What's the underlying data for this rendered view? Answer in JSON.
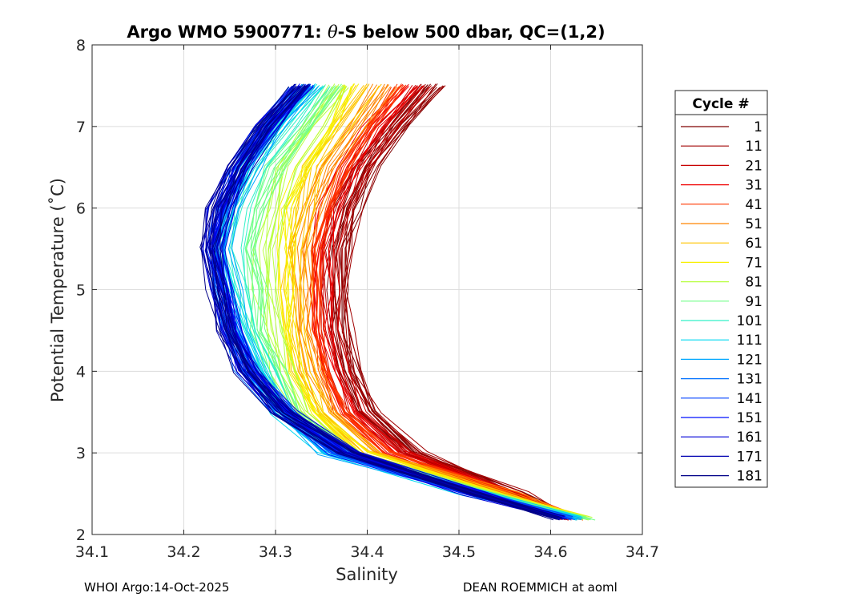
{
  "chart_data": {
    "type": "line",
    "title_prefix": "Argo WMO 5900771: ",
    "title_symbol": "θ",
    "title_suffix": "-S below 500 dbar,  QC=(1,2)",
    "xlabel": "Salinity",
    "ylabel": "Potential Temperature (˚C)",
    "xlim": [
      34.1,
      34.7
    ],
    "ylim": [
      2,
      8
    ],
    "xticks": [
      34.1,
      34.2,
      34.3,
      34.4,
      34.5,
      34.6,
      34.7
    ],
    "xtick_labels": [
      "34.1",
      "34.2",
      "34.3",
      "34.4",
      "34.5",
      "34.6",
      "34.7"
    ],
    "yticks": [
      2,
      3,
      4,
      5,
      6,
      7,
      8
    ],
    "ytick_labels": [
      "2",
      "3",
      "4",
      "5",
      "6",
      "7",
      "8"
    ],
    "grid": true,
    "legend_title": "Cycle #",
    "legend_position": "outside-right",
    "colormap": "jet",
    "cycles_total": 185,
    "legend": [
      {
        "label": "1",
        "color": "#7f0000"
      },
      {
        "label": "11",
        "color": "#a00000"
      },
      {
        "label": "21",
        "color": "#c80000"
      },
      {
        "label": "31",
        "color": "#f00000"
      },
      {
        "label": "41",
        "color": "#ff3800"
      },
      {
        "label": "51",
        "color": "#ff8400"
      },
      {
        "label": "61",
        "color": "#ffc400"
      },
      {
        "label": "71",
        "color": "#f8f000"
      },
      {
        "label": "81",
        "color": "#b8ff40"
      },
      {
        "label": "91",
        "color": "#70ff88"
      },
      {
        "label": "101",
        "color": "#30f0c8"
      },
      {
        "label": "111",
        "color": "#00d8f0"
      },
      {
        "label": "121",
        "color": "#00a8ff"
      },
      {
        "label": "131",
        "color": "#0070ff"
      },
      {
        "label": "141",
        "color": "#0040ff"
      },
      {
        "label": "151",
        "color": "#0010ff"
      },
      {
        "label": "161",
        "color": "#0000d8"
      },
      {
        "label": "171",
        "color": "#0000b0"
      },
      {
        "label": "181",
        "color": "#000088"
      }
    ],
    "theta_levels": [
      2.2,
      2.5,
      3.0,
      3.5,
      4.0,
      4.5,
      5.0,
      5.5,
      6.0,
      6.5,
      7.0,
      7.5
    ],
    "series_groups": [
      {
        "color": "#7f0000",
        "salinity": [
          34.62,
          34.56,
          34.45,
          34.4,
          34.38,
          34.37,
          34.37,
          34.37,
          34.38,
          34.4,
          34.43,
          34.47
        ]
      },
      {
        "color": "#a00000",
        "salinity": [
          34.62,
          34.56,
          34.45,
          34.4,
          34.38,
          34.37,
          34.37,
          34.37,
          34.38,
          34.4,
          34.43,
          34.47
        ]
      },
      {
        "color": "#c80000",
        "salinity": [
          34.62,
          34.56,
          34.44,
          34.39,
          34.37,
          34.36,
          34.36,
          34.36,
          34.37,
          34.39,
          34.42,
          34.46
        ]
      },
      {
        "color": "#f00000",
        "salinity": [
          34.62,
          34.55,
          34.43,
          34.38,
          34.36,
          34.35,
          34.35,
          34.35,
          34.36,
          34.38,
          34.41,
          34.45
        ]
      },
      {
        "color": "#ff3800",
        "salinity": [
          34.63,
          34.55,
          34.42,
          34.37,
          34.35,
          34.34,
          34.34,
          34.34,
          34.35,
          34.37,
          34.4,
          34.43
        ]
      },
      {
        "color": "#ff8400",
        "salinity": [
          34.63,
          34.55,
          34.41,
          34.36,
          34.34,
          34.33,
          34.33,
          34.33,
          34.34,
          34.36,
          34.39,
          34.42
        ]
      },
      {
        "color": "#ffc400",
        "salinity": [
          34.63,
          34.54,
          34.4,
          34.35,
          34.33,
          34.32,
          34.32,
          34.32,
          34.33,
          34.34,
          34.37,
          34.4
        ]
      },
      {
        "color": "#f8f000",
        "salinity": [
          34.64,
          34.54,
          34.39,
          34.34,
          34.32,
          34.31,
          34.31,
          34.31,
          34.31,
          34.33,
          34.36,
          34.38
        ]
      },
      {
        "color": "#b8ff40",
        "salinity": [
          34.64,
          34.53,
          34.38,
          34.33,
          34.31,
          34.3,
          34.29,
          34.29,
          34.3,
          34.31,
          34.34,
          34.37
        ]
      },
      {
        "color": "#70ff88",
        "salinity": [
          34.64,
          34.53,
          34.38,
          34.32,
          34.3,
          34.28,
          34.28,
          34.27,
          34.28,
          34.3,
          34.33,
          34.36
        ]
      },
      {
        "color": "#30f0c8",
        "salinity": [
          34.63,
          34.52,
          34.37,
          34.31,
          34.29,
          34.27,
          34.26,
          34.25,
          34.26,
          34.28,
          34.31,
          34.35
        ]
      },
      {
        "color": "#00d8f0",
        "salinity": [
          34.63,
          34.52,
          34.36,
          34.31,
          34.28,
          34.26,
          34.25,
          34.24,
          34.25,
          34.27,
          34.3,
          34.34
        ]
      },
      {
        "color": "#00a8ff",
        "salinity": [
          34.63,
          34.52,
          34.36,
          34.31,
          34.28,
          34.26,
          34.25,
          34.24,
          34.25,
          34.27,
          34.3,
          34.34
        ]
      },
      {
        "color": "#0070ff",
        "salinity": [
          34.62,
          34.52,
          34.37,
          34.31,
          34.27,
          34.25,
          34.24,
          34.24,
          34.25,
          34.26,
          34.29,
          34.33
        ]
      },
      {
        "color": "#0040ff",
        "salinity": [
          34.62,
          34.52,
          34.37,
          34.31,
          34.27,
          34.25,
          34.24,
          34.23,
          34.24,
          34.26,
          34.29,
          34.33
        ]
      },
      {
        "color": "#0010ff",
        "salinity": [
          34.61,
          34.52,
          34.37,
          34.31,
          34.27,
          34.25,
          34.24,
          34.23,
          34.24,
          34.26,
          34.29,
          34.33
        ]
      },
      {
        "color": "#0000d8",
        "salinity": [
          34.61,
          34.52,
          34.38,
          34.31,
          34.27,
          34.25,
          34.24,
          34.23,
          34.24,
          34.26,
          34.29,
          34.33
        ]
      },
      {
        "color": "#0000b0",
        "salinity": [
          34.61,
          34.52,
          34.38,
          34.31,
          34.27,
          34.25,
          34.24,
          34.23,
          34.24,
          34.26,
          34.29,
          34.33
        ]
      },
      {
        "color": "#000088",
        "salinity": [
          34.61,
          34.52,
          34.38,
          34.31,
          34.27,
          34.25,
          34.24,
          34.23,
          34.24,
          34.26,
          34.29,
          34.33
        ]
      }
    ]
  },
  "footer": {
    "left": "WHOI Argo:14-Oct-2025",
    "right": "DEAN ROEMMICH at aoml"
  }
}
